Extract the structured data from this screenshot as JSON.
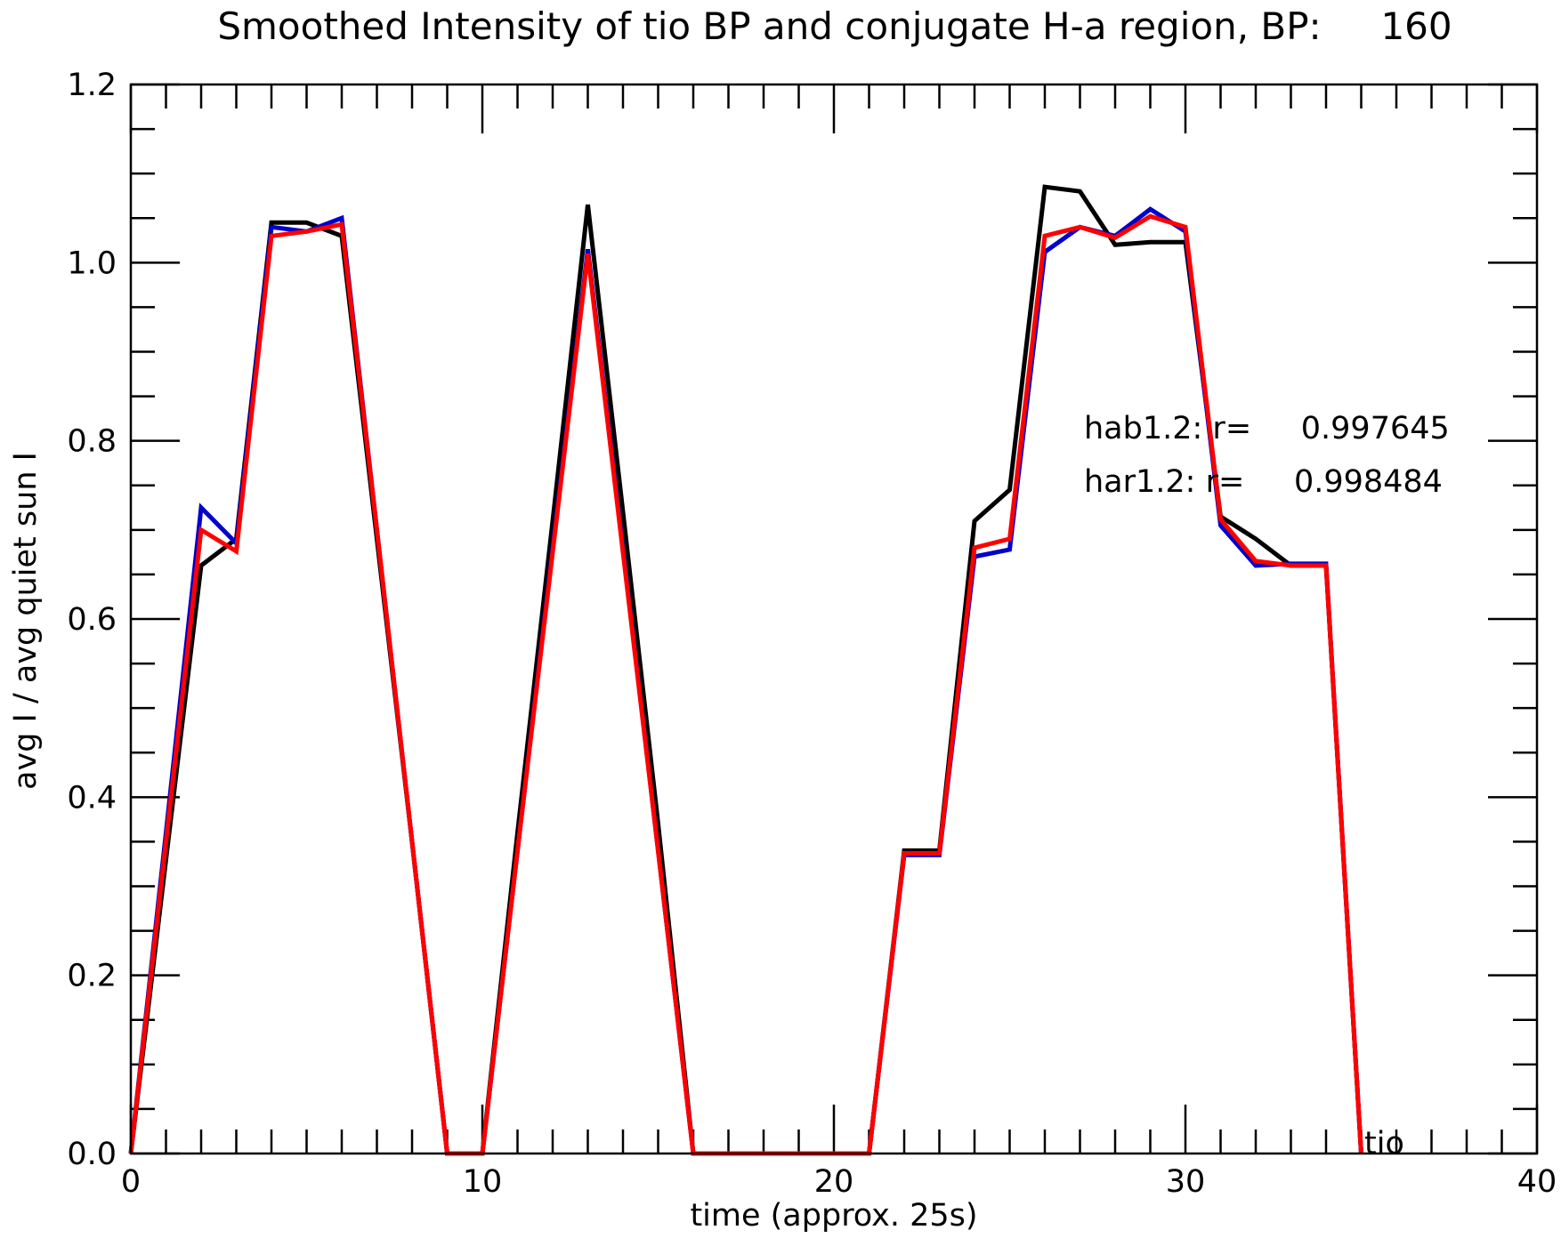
{
  "chart_data": {
    "type": "line",
    "title": "Smoothed Intensity of tio BP and conjugate H-a region, BP:     160",
    "xlabel": "time (approx. 25s)",
    "ylabel": "avg I / avg quiet sun I",
    "xlim": [
      0,
      40
    ],
    "ylim": [
      0,
      1.2
    ],
    "xticks": [
      0,
      10,
      20,
      30,
      40
    ],
    "yticks": [
      0.0,
      0.2,
      0.4,
      0.6,
      0.8,
      1.0,
      1.2
    ],
    "xtick_labels": [
      "0",
      "10",
      "20",
      "30",
      "40"
    ],
    "ytick_labels": [
      "0.0",
      "0.2",
      "0.4",
      "0.6",
      "0.8",
      "1.0",
      "1.2"
    ],
    "x_minor_step": 1,
    "y_minor_step": 0.05,
    "grid": false,
    "annotations": [
      {
        "id": "hab",
        "text": "hab1.2: r=     0.997645"
      },
      {
        "id": "har",
        "text": "har1.2: r=     0.998484"
      },
      {
        "id": "tio",
        "text": "tio"
      }
    ],
    "series": [
      {
        "color": "#000000",
        "x": [
          0,
          1,
          2,
          3,
          4,
          5,
          6,
          7,
          8,
          9,
          10,
          11,
          12,
          13,
          14,
          15,
          16,
          17,
          18,
          19,
          20,
          21,
          22,
          23,
          24,
          25,
          26,
          27,
          28,
          29,
          30,
          31,
          32,
          33,
          34,
          35
        ],
        "y": [
          0,
          0.33,
          0.66,
          0.69,
          1.045,
          1.045,
          1.03,
          0.69,
          0.35,
          0,
          0,
          0.36,
          0.71,
          1.065,
          0.72,
          0.37,
          0,
          0,
          0,
          0,
          0,
          0,
          0.34,
          0.34,
          0.71,
          0.745,
          1.085,
          1.08,
          1.02,
          1.023,
          1.023,
          0.715,
          0.69,
          0.66,
          0.66,
          0
        ]
      },
      {
        "color": "#0000cc",
        "x": [
          0,
          1,
          2,
          3,
          4,
          5,
          6,
          7,
          8,
          9,
          10,
          11,
          12,
          13,
          14,
          15,
          16,
          17,
          18,
          19,
          20,
          21,
          22,
          23,
          24,
          25,
          26,
          27,
          28,
          29,
          30,
          31,
          32,
          33,
          34,
          35
        ],
        "y": [
          0,
          0.36,
          0.725,
          0.685,
          1.04,
          1.035,
          1.05,
          0.7,
          0.35,
          0,
          0,
          0.34,
          0.68,
          1.015,
          0.68,
          0.34,
          0,
          0,
          0,
          0,
          0,
          0,
          0.335,
          0.335,
          0.67,
          0.678,
          1.012,
          1.04,
          1.03,
          1.06,
          1.035,
          0.705,
          0.66,
          0.662,
          0.662,
          0
        ]
      },
      {
        "color": "#ff0000",
        "x": [
          0,
          1,
          2,
          3,
          4,
          5,
          6,
          7,
          8,
          9,
          10,
          11,
          12,
          13,
          14,
          15,
          16,
          17,
          18,
          19,
          20,
          21,
          22,
          23,
          24,
          25,
          26,
          27,
          28,
          29,
          30,
          31,
          32,
          33,
          34,
          35
        ],
        "y": [
          0,
          0.35,
          0.7,
          0.676,
          1.03,
          1.035,
          1.043,
          0.7,
          0.35,
          0,
          0,
          0.34,
          0.675,
          1.01,
          0.675,
          0.34,
          0,
          0,
          0,
          0,
          0,
          0,
          0.337,
          0.337,
          0.68,
          0.69,
          1.03,
          1.04,
          1.028,
          1.052,
          1.04,
          0.712,
          0.665,
          0.66,
          0.66,
          0
        ]
      }
    ]
  }
}
